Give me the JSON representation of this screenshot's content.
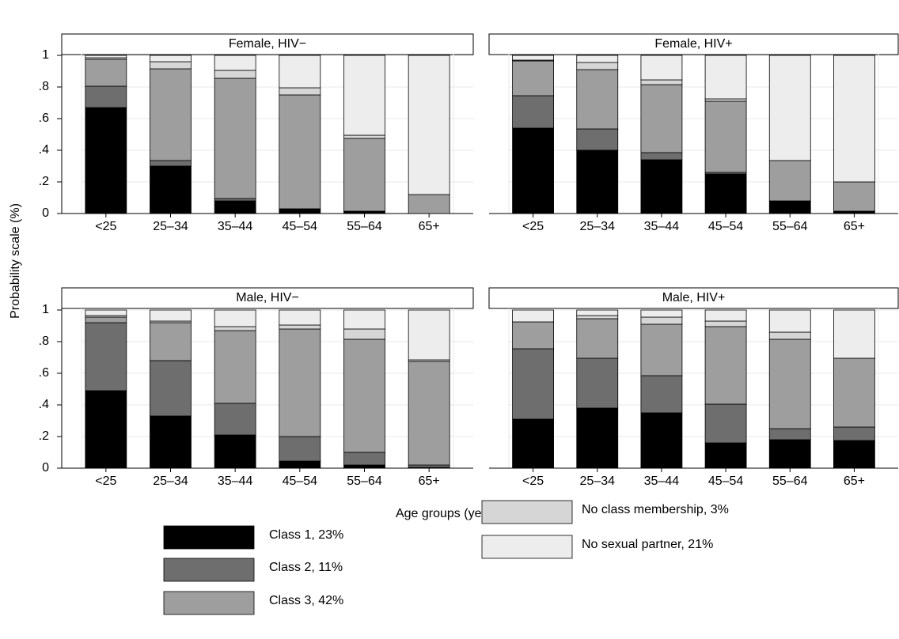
{
  "chart_data": {
    "type": "bar",
    "stacked": true,
    "panels": [
      "Female, HIV−",
      "Female, HIV+",
      "Male, HIV−",
      "Male, HIV+"
    ],
    "categories": [
      "<25",
      "25–34",
      "35–44",
      "45–54",
      "55–64",
      "65+"
    ],
    "ylabel": "Probability scale (%)",
    "xlabel": "Age groups (years)",
    "ylim": [
      0,
      1
    ],
    "yticks": [
      {
        "value": 0,
        "label": "0"
      },
      {
        "value": 0.2,
        "label": ".2"
      },
      {
        "value": 0.4,
        "label": ".4"
      },
      {
        "value": 0.6,
        "label": ".6"
      },
      {
        "value": 0.8,
        "label": ".8"
      },
      {
        "value": 1,
        "label": "1"
      }
    ],
    "grid": true,
    "series": [
      {
        "name": "Class 1, 23%",
        "color": "#000000",
        "values": [
          [
            0.67,
            0.3,
            0.08,
            0.03,
            0.015,
            0
          ],
          [
            0.54,
            0.4,
            0.34,
            0.25,
            0.08,
            0.015
          ],
          [
            0.49,
            0.33,
            0.21,
            0.045,
            0.02,
            0.005
          ],
          [
            0.31,
            0.38,
            0.35,
            0.16,
            0.18,
            0.175
          ]
        ]
      },
      {
        "name": "Class 2, 11%",
        "color": "#6e6e6e",
        "values": [
          [
            0.135,
            0.035,
            0.015,
            0,
            0,
            0
          ],
          [
            0.205,
            0.135,
            0.045,
            0.01,
            0,
            0
          ],
          [
            0.43,
            0.35,
            0.2,
            0.155,
            0.08,
            0.015
          ],
          [
            0.445,
            0.315,
            0.235,
            0.245,
            0.07,
            0.085
          ]
        ]
      },
      {
        "name": "Class 3, 42%",
        "color": "#9e9e9e",
        "values": [
          [
            0.17,
            0.58,
            0.76,
            0.72,
            0.46,
            0.12
          ],
          [
            0.22,
            0.375,
            0.43,
            0.45,
            0.255,
            0.185
          ],
          [
            0.035,
            0.24,
            0.46,
            0.68,
            0.715,
            0.655
          ],
          [
            0.17,
            0.25,
            0.325,
            0.49,
            0.565,
            0.435
          ]
        ]
      },
      {
        "name": "No class membership, 3%",
        "color": "#d6d6d6",
        "values": [
          [
            0.01,
            0.045,
            0.05,
            0.045,
            0.02,
            0
          ],
          [
            0.005,
            0.045,
            0.03,
            0.015,
            0,
            0
          ],
          [
            0.01,
            0.01,
            0.025,
            0.025,
            0.065,
            0.01
          ],
          [
            0,
            0.02,
            0.045,
            0.035,
            0.045,
            0
          ]
        ]
      },
      {
        "name": "No sexual partner, 21%",
        "color": "#ededed",
        "values": [
          [
            0.015,
            0.04,
            0.095,
            0.205,
            0.505,
            0.88
          ],
          [
            0.03,
            0.045,
            0.155,
            0.275,
            0.665,
            0.8
          ],
          [
            0.035,
            0.07,
            0.105,
            0.095,
            0.12,
            0.315
          ],
          [
            0.075,
            0.035,
            0.045,
            0.07,
            0.14,
            0.305
          ]
        ]
      }
    ]
  }
}
